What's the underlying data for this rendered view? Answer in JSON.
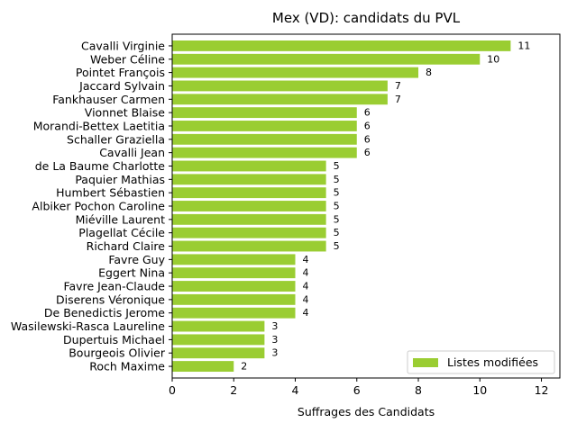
{
  "chart_data": {
    "type": "bar",
    "orientation": "horizontal",
    "title": "Mex (VD): candidats du PVL",
    "xlabel": "Suffrages des Candidats",
    "ylabel": "",
    "xlim": [
      0,
      12.6
    ],
    "xticks": [
      0,
      2,
      4,
      6,
      8,
      10,
      12
    ],
    "grid": false,
    "legend_position": "bottom-right",
    "bar_color": "#9acd32",
    "categories": [
      "Cavalli Virginie",
      "Weber Céline",
      "Pointet François",
      "Jaccard Sylvain",
      "Fankhauser Carmen",
      "Vionnet Blaise",
      "Morandi-Bettex Laetitia",
      "Schaller Graziella",
      "Cavalli Jean",
      "de La Baume Charlotte",
      "Paquier Mathias",
      "Humbert Sébastien",
      "Albiker Pochon Caroline",
      "Miéville Laurent",
      "Plagellat Cécile",
      "Richard Claire",
      "Favre Guy",
      "Eggert Nina",
      "Favre Jean-Claude",
      "Diserens Véronique",
      "De Benedictis Jerome",
      "Wasilewski-Rasca Laureline",
      "Dupertuis Michael",
      "Bourgeois Olivier",
      "Roch Maxime"
    ],
    "series": [
      {
        "name": "Listes modifiées",
        "values": [
          11,
          10,
          8,
          7,
          7,
          6,
          6,
          6,
          6,
          5,
          5,
          5,
          5,
          5,
          5,
          5,
          4,
          4,
          4,
          4,
          4,
          3,
          3,
          3,
          2
        ]
      }
    ]
  }
}
